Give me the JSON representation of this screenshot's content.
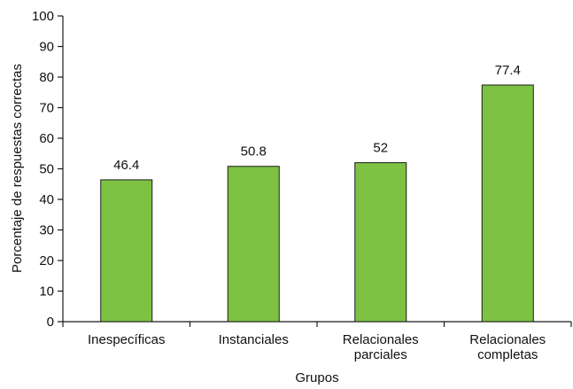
{
  "chart_data": {
    "type": "bar",
    "categories": [
      [
        "Inespecíficas"
      ],
      [
        "Instanciales"
      ],
      [
        "Relacionales",
        "parciales"
      ],
      [
        "Relacionales",
        "completas"
      ]
    ],
    "values": [
      46.4,
      50.8,
      52,
      77.4
    ],
    "data_labels": [
      "46.4",
      "50.8",
      "52",
      "77.4"
    ],
    "xlabel": "Grupos",
    "ylabel": "Porcentaje de respuestas correctas",
    "ylim": [
      0,
      100
    ],
    "yticks": [
      0,
      10,
      20,
      30,
      40,
      50,
      60,
      70,
      80,
      90,
      100
    ],
    "grid": false,
    "legend": "none",
    "colors": {
      "bar_fill": "#7dc242",
      "bar_stroke": "#1a1a1a",
      "axis": "#1a1a1a"
    }
  }
}
